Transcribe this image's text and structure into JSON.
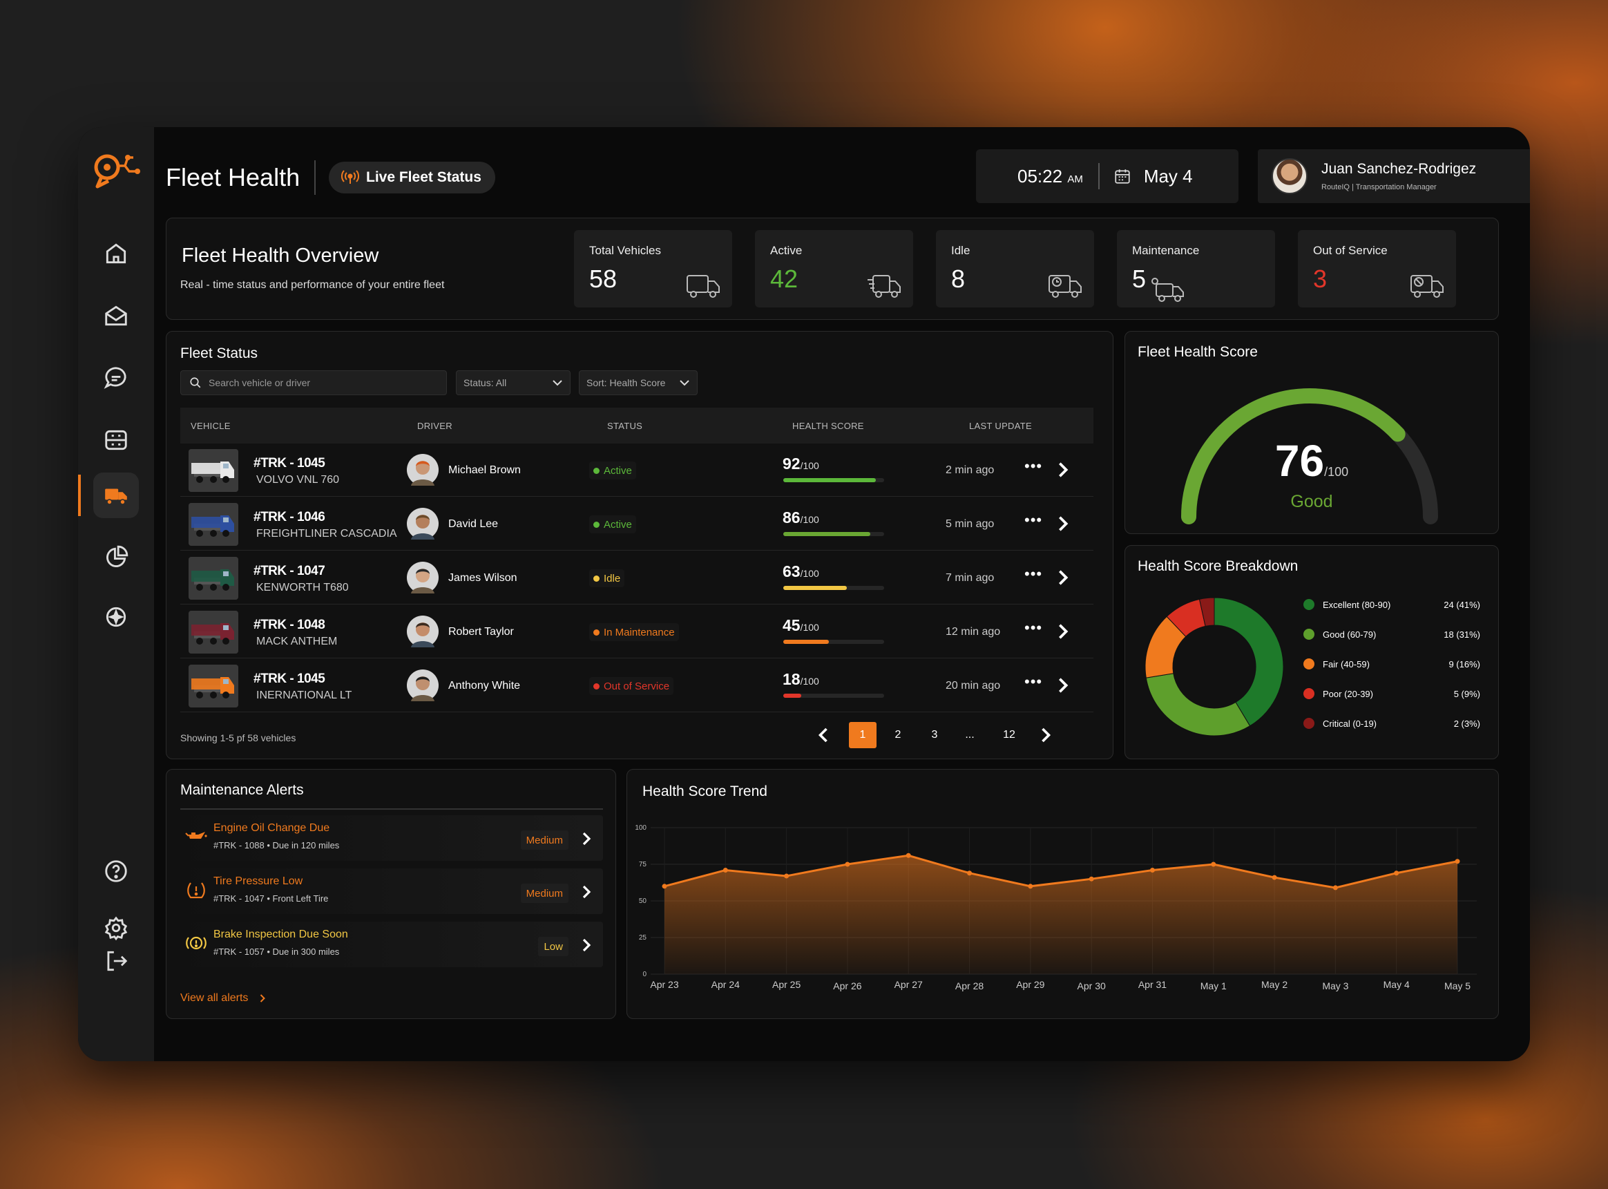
{
  "header": {
    "title": "Fleet Health",
    "live_status": "Live Fleet Status",
    "time": "05:22",
    "ampm": "AM",
    "date": "May 4"
  },
  "user": {
    "name": "Juan Sanchez-Rodrigez",
    "role": "RouteIQ | Transportation Manager"
  },
  "sidebar": {
    "items": [
      {
        "icon": "home-icon"
      },
      {
        "icon": "mail-icon"
      },
      {
        "icon": "chat-icon"
      },
      {
        "icon": "dashboard-icon"
      },
      {
        "icon": "truck-icon",
        "active": true
      },
      {
        "icon": "pie-chart-icon"
      },
      {
        "icon": "sparkle-icon"
      }
    ],
    "bottom": [
      {
        "icon": "help-icon"
      },
      {
        "icon": "settings-icon"
      },
      {
        "icon": "logout-icon"
      }
    ]
  },
  "overview": {
    "title": "Fleet Health Overview",
    "subtitle": "Real - time status and performance of your entire fleet",
    "stats": [
      {
        "label": "Total Vehicles",
        "value": "58",
        "color": "#ffffff"
      },
      {
        "label": "Active",
        "value": "42",
        "color": "#5cb83a"
      },
      {
        "label": "Idle",
        "value": "8",
        "color": "#ffffff"
      },
      {
        "label": "Maintenance",
        "value": "5",
        "color": "#ffffff"
      },
      {
        "label": "Out of Service",
        "value": "3",
        "color": "#e2362a"
      }
    ]
  },
  "fleet_status": {
    "title": "Fleet Status",
    "search_placeholder": "Search vehicle or driver",
    "status_filter": "Status: All",
    "sort": "Sort: Health Score",
    "columns": [
      "VEHICLE",
      "DRIVER",
      "STATUS",
      "HEALTH SCORE",
      "LAST UPDATE"
    ],
    "rows": [
      {
        "id": "#TRK - 1045",
        "model": "VOLVO VNL 760",
        "driver": "Michael Brown",
        "status": "Active",
        "status_color": "#5cb83a",
        "score": "92",
        "score_max": "/100",
        "score_pct": 0.92,
        "bar_color": "#5cb83a",
        "updated": "2 min ago",
        "truck_color": "#e9e9e9"
      },
      {
        "id": "#TRK - 1046",
        "model": "FREIGHTLINER CASCADIA",
        "driver": "David Lee",
        "status": "Active",
        "status_color": "#5cb83a",
        "score": "86",
        "score_max": "/100",
        "score_pct": 0.86,
        "bar_color": "#6aa733",
        "updated": "5 min ago",
        "truck_color": "#2d4fa0"
      },
      {
        "id": "#TRK - 1047",
        "model": "KENWORTH T680",
        "driver": "James Wilson",
        "status": "Idle",
        "status_color": "#f2c744",
        "score": "63",
        "score_max": "/100",
        "score_pct": 0.63,
        "bar_color": "#f2c744",
        "updated": "7 min ago",
        "truck_color": "#1f5a45"
      },
      {
        "id": "#TRK - 1048",
        "model": "MACK ANTHEM",
        "driver": "Robert Taylor",
        "status": "In Maintenance",
        "status_color": "#f07a1e",
        "score": "45",
        "score_max": "/100",
        "score_pct": 0.45,
        "bar_color": "#f07a1e",
        "updated": "12 min ago",
        "truck_color": "#7a2230"
      },
      {
        "id": "#TRK - 1045",
        "model": "INERNATIONAL LT",
        "driver": "Anthony White",
        "status": "Out of Service",
        "status_color": "#e2362a",
        "score": "18",
        "score_max": "/100",
        "score_pct": 0.18,
        "bar_color": "#e2362a",
        "updated": "20 min ago",
        "truck_color": "#f07a1e"
      }
    ],
    "showing": "Showing 1-5 pf 58 vehicles",
    "pages": [
      "1",
      "2",
      "3",
      "...",
      "12"
    ],
    "current_page": "1"
  },
  "health_score": {
    "title": "Fleet Health Score",
    "value": "76",
    "max": "/100",
    "label": "Good",
    "fraction": 0.76
  },
  "breakdown": {
    "title": "Health Score Breakdown",
    "items": [
      {
        "label": "Excellent (80-90)",
        "value": "24 (41%)",
        "count": 24,
        "color": "#1e7a2a"
      },
      {
        "label": "Good (60-79)",
        "value": "18 (31%)",
        "count": 18,
        "color": "#5e9f2c"
      },
      {
        "label": "Fair (40-59)",
        "value": "9 (16%)",
        "count": 9,
        "color": "#f07a1e"
      },
      {
        "label": "Poor (20-39)",
        "value": "5 (9%)",
        "count": 5,
        "color": "#d92f22"
      },
      {
        "label": "Critical (0-19)",
        "value": "2 (3%)",
        "count": 2,
        "color": "#8a1a18"
      }
    ]
  },
  "alerts": {
    "title": "Maintenance Alerts",
    "items": [
      {
        "name": "Engine Oil Change Due",
        "detail": "#TRK - 1088 • Due in 120 miles",
        "priority": "Medium",
        "color": "#f07a1e",
        "icon": "oil-can-icon"
      },
      {
        "name": "Tire Pressure Low",
        "detail": "#TRK - 1047 • Front Left Tire",
        "priority": "Medium",
        "color": "#f07a1e",
        "icon": "tire-pressure-icon"
      },
      {
        "name": "Brake Inspection Due Soon",
        "detail": "#TRK - 1057 • Due in 300 miles",
        "priority": "Low",
        "color": "#f2c744",
        "icon": "brake-icon"
      }
    ],
    "view_all": "View all alerts"
  },
  "chart_data": {
    "type": "area",
    "title": "Health Score Trend",
    "x": [
      "Apr 23",
      "Apr 24",
      "Apr 25",
      "Apr 26",
      "Apr 27",
      "Apr 28",
      "Apr 29",
      "Apr 30",
      "Apr 31",
      "May 1",
      "May 2",
      "May 3",
      "May 4",
      "May 5"
    ],
    "values": [
      60,
      71,
      67,
      75,
      81,
      69,
      60,
      65,
      71,
      75,
      66,
      59,
      69,
      77
    ],
    "ylim": [
      0,
      100
    ],
    "yticks": [
      0,
      25,
      50,
      75,
      100
    ],
    "grid": true,
    "color": "#f07a1e"
  }
}
